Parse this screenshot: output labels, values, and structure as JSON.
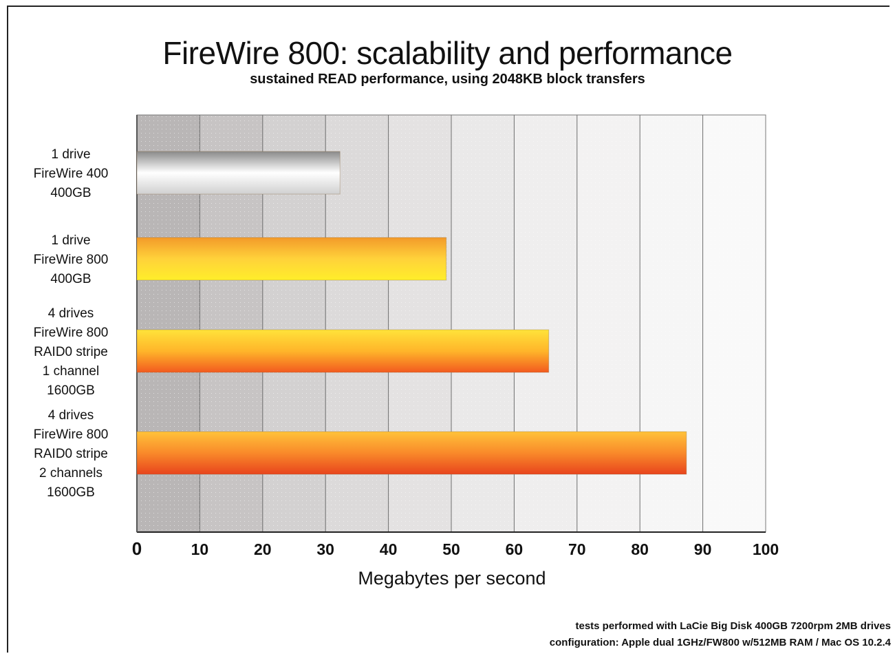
{
  "chart_data": {
    "type": "bar",
    "orientation": "horizontal",
    "title": "FireWire 800: scalability and performance",
    "subtitle": "sustained READ performance, using 2048KB block transfers",
    "xlabel": "Megabytes per second",
    "ylabel": "",
    "xlim": [
      0,
      100
    ],
    "x_ticks": [
      "0",
      "10",
      "20",
      "30",
      "40",
      "50",
      "60",
      "70",
      "80",
      "90",
      "100"
    ],
    "grid": true,
    "categories": [
      [
        "1 drive",
        "FireWire 400",
        "400GB"
      ],
      [
        "1 drive",
        "FireWire 800",
        "400GB"
      ],
      [
        "4 drives",
        "FireWire 800",
        "RAID0 stripe",
        "1 channel",
        "1600GB"
      ],
      [
        "4 drives",
        "FireWire 800",
        "RAID0 stripe",
        "2 channels",
        "1600GB"
      ]
    ],
    "values": [
      32.3,
      49.2,
      65.5,
      87.4
    ],
    "bar_colors": [
      [
        "#8a8a8a",
        "#ffffff",
        "#d0d0d0"
      ],
      [
        "#f39a2a",
        "#ffd23a",
        "#ffee2a"
      ],
      [
        "#ffe33a",
        "#ffb52a",
        "#f25a1f"
      ],
      [
        "#ffc23a",
        "#f98a2a",
        "#e8441d"
      ]
    ]
  },
  "footnotes": {
    "line1": "tests performed with LaCie Big Disk 400GB 7200rpm 2MB drives",
    "line2": "configuration: Apple dual 1GHz/FW800 w/512MB RAM / Mac OS 10.2.4"
  }
}
